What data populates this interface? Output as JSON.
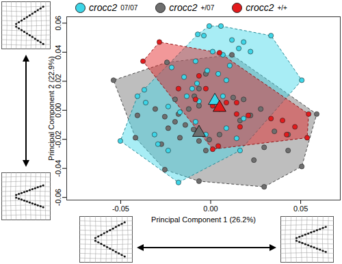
{
  "chart_data": {
    "type": "scatter",
    "xlabel": "Principal Component 1 (26.2%)",
    "ylabel": "Principal Component 2 (22.9%)",
    "xlim": [
      -0.08,
      0.072
    ],
    "ylim": [
      -0.0618,
      0.0644
    ],
    "xticks": [
      -0.05,
      {
        "value": 0,
        "label": "0.00"
      },
      0.05
    ],
    "yticks": [
      -0.06,
      -0.04,
      -0.02,
      {
        "value": 0,
        "label": "0.00"
      },
      0.02,
      0.04,
      0.06
    ],
    "grid": false,
    "legend": "top",
    "series": [
      {
        "name": "crocc2 +/07",
        "color": "#6e6e6e",
        "marker": "circle",
        "centroid": [
          -0.0065,
          -0.0154
        ],
        "x": [
          -0.054,
          -0.0243,
          0.0118,
          0.0589,
          0.0506,
          0.0297,
          -0.0065,
          -0.0255,
          -0.0418,
          -0.0308,
          -0.0027,
          -0.0065,
          -0.0091,
          0.0011,
          0.0049,
          -0.0065,
          -0.0122,
          -0.0179,
          -0.0255,
          -0.0198,
          -0.0141,
          -0.0095,
          -0.0236,
          -0.0171,
          -0.0065,
          -0.0008,
          0.0049,
          -0.0027,
          0.0163,
          0.0221,
          0.0278,
          0.0354,
          0.043,
          0.043,
          0.0297,
          0.024,
          -0.0407,
          -0.0274,
          0.0125,
          0.0183,
          -0.0198
        ],
        "y": [
          0.0207,
          0.033,
          0.0382,
          -0.0026,
          -0.0387,
          -0.0527,
          -0.0488,
          -0.0409,
          -0.0189,
          0.0009,
          0.0251,
          0.0149,
          0.0097,
          0.0053,
          0.0009,
          0.0031,
          0.0009,
          -0.0026,
          -0.0044,
          -0.0079,
          -0.0101,
          -0.0132,
          -0.0123,
          -0.0189,
          -0.0211,
          -0.0202,
          -0.0167,
          -0.0277,
          -0.007,
          -0.0035,
          0.0009,
          -0.0145,
          -0.0167,
          -0.0277,
          -0.0255,
          -0.0343,
          -0.0035,
          -0.0233,
          0.0088,
          0.0075,
          0.0075
        ]
      },
      {
        "name": "crocc2 07/07",
        "color": "#3dd6e8",
        "marker": "circle",
        "centroid": [
          0.0023,
          0.0066
        ],
        "x": [
          -0.0008,
          0.0057,
          0.0118,
          0.0183,
          0.0156,
          0.0221,
          0.0335,
          0.0506,
          -0.0038,
          -0.0072,
          0.0011,
          0.0068,
          -0.0084,
          0.0106,
          -0.0019,
          0.0042,
          0.0087,
          -0.0076,
          -0.0217,
          -0.0148,
          -0.0369,
          -0.0361,
          -0.0407,
          -0.0103,
          -0.0133,
          -0.0065,
          -0.0236,
          -0.0171,
          -0.0084,
          0.0087,
          -0.0027,
          0.0144,
          0.0163,
          -0.0312,
          -0.0502,
          -0.0179,
          0.0183,
          0.0068,
          -0.0293,
          -0.0236
        ],
        "y": [
          0.058,
          0.058,
          0.0484,
          0.047,
          0.0426,
          0.0404,
          0.0514,
          0.0207,
          0.0514,
          0.0523,
          0.0404,
          0.0382,
          0.0338,
          0.0308,
          0.0273,
          0.0251,
          0.0207,
          0.0185,
          0.0295,
          0.0229,
          0.0141,
          0.0053,
          0.0097,
          0.0149,
          0.0097,
          0.0062,
          0.0026,
          -0.0013,
          -0.0079,
          -0.0123,
          -0.0167,
          -0.0193,
          -0.0277,
          -0.0167,
          -0.0211,
          -0.0497,
          -0.0057,
          0.0097,
          -0.0233,
          -0.0277
        ]
      },
      {
        "name": "crocc2 +/+",
        "color": "#e31a1c",
        "marker": "circle",
        "centroid": [
          0.0049,
          0.0018
        ],
        "x": [
          -0.0285,
          -0.0376,
          0.0049,
          -0.0027,
          -0.0179,
          -0.0084,
          0.0087,
          0.0144,
          0.0144,
          0.0209,
          0.0335,
          0.0399,
          0.0468,
          0.0536,
          0.0544,
          0.0422,
          0.0163,
          0.0042,
          0.0011,
          -0.0065,
          0.0011
        ],
        "y": [
          0.047,
          0.0338,
          0.0396,
          0.0149,
          0.0149,
          0.0075,
          0.0053,
          0.0053,
          -0.0026,
          -0.0035,
          -0.0057,
          -0.007,
          -0.0114,
          -0.0189,
          -0.0026,
          -0.0167,
          -0.0114,
          -0.0246,
          -0.0268,
          0.0237,
          0.0031
        ]
      }
    ]
  }
}
